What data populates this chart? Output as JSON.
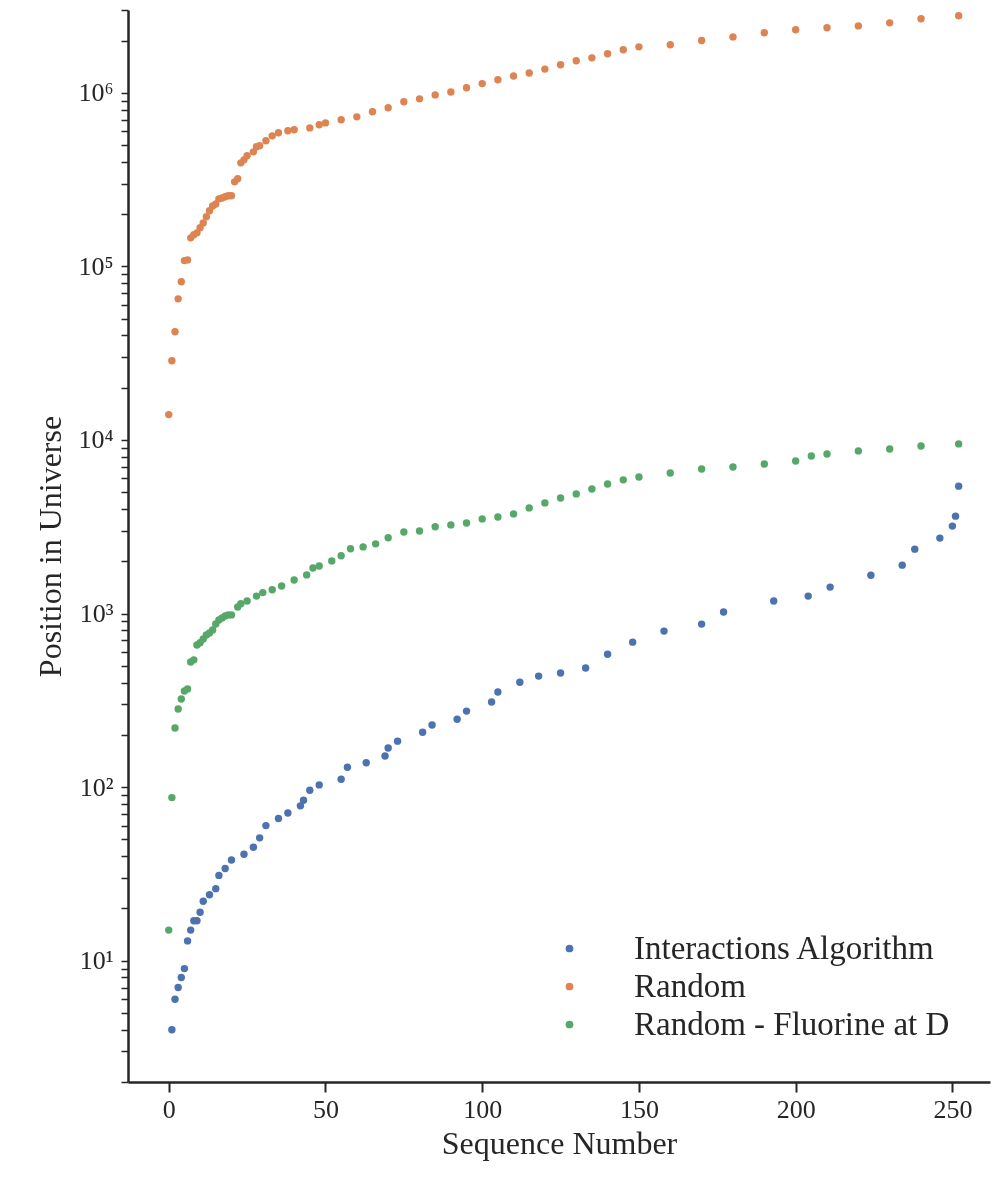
{
  "chart_data": {
    "type": "scatter",
    "xlabel": "Sequence Number",
    "ylabel": "Position in Universe",
    "log": "y",
    "grid": false,
    "legend": "bottom right",
    "marker": "circle",
    "xlim": [
      -13,
      262
    ],
    "xticks": [
      0,
      50,
      100,
      150,
      200,
      250
    ],
    "ylim": [
      2,
      3000000
    ],
    "yticks": [
      {
        "value": 2,
        "label": null
      },
      {
        "value": 3,
        "label": null
      },
      {
        "value": 4,
        "label": null
      },
      {
        "value": 5,
        "label": null
      },
      {
        "value": 6,
        "label": null
      },
      {
        "value": 7,
        "label": null
      },
      {
        "value": 8,
        "label": null
      },
      {
        "value": 9,
        "label": null
      },
      {
        "value": 10,
        "label": "10¹"
      },
      {
        "value": 20,
        "label": null
      },
      {
        "value": 30,
        "label": null
      },
      {
        "value": 40,
        "label": null
      },
      {
        "value": 50,
        "label": null
      },
      {
        "value": 60,
        "label": null
      },
      {
        "value": 70,
        "label": null
      },
      {
        "value": 80,
        "label": null
      },
      {
        "value": 90,
        "label": null
      },
      {
        "value": 100,
        "label": "10²"
      },
      {
        "value": 200,
        "label": null
      },
      {
        "value": 300,
        "label": null
      },
      {
        "value": 400,
        "label": null
      },
      {
        "value": 500,
        "label": null
      },
      {
        "value": 600,
        "label": null
      },
      {
        "value": 700,
        "label": null
      },
      {
        "value": 800,
        "label": null
      },
      {
        "value": 900,
        "label": null
      },
      {
        "value": 1000,
        "label": "10³"
      },
      {
        "value": 2000,
        "label": null
      },
      {
        "value": 3000,
        "label": null
      },
      {
        "value": 4000,
        "label": null
      },
      {
        "value": 5000,
        "label": null
      },
      {
        "value": 6000,
        "label": null
      },
      {
        "value": 7000,
        "label": null
      },
      {
        "value": 8000,
        "label": null
      },
      {
        "value": 9000,
        "label": null
      },
      {
        "value": 10000,
        "label": "10⁴"
      },
      {
        "value": 20000,
        "label": null
      },
      {
        "value": 30000,
        "label": null
      },
      {
        "value": 40000,
        "label": null
      },
      {
        "value": 50000,
        "label": null
      },
      {
        "value": 60000,
        "label": null
      },
      {
        "value": 70000,
        "label": null
      },
      {
        "value": 80000,
        "label": null
      },
      {
        "value": 90000,
        "label": null
      },
      {
        "value": 100000,
        "label": "10⁵"
      },
      {
        "value": 200000,
        "label": null
      },
      {
        "value": 300000,
        "label": null
      },
      {
        "value": 400000,
        "label": null
      },
      {
        "value": 500000,
        "label": null
      },
      {
        "value": 600000,
        "label": null
      },
      {
        "value": 700000,
        "label": null
      },
      {
        "value": 800000,
        "label": null
      },
      {
        "value": 900000,
        "label": null
      },
      {
        "value": 1000000,
        "label": "10⁶"
      },
      {
        "value": 2000000,
        "label": null
      },
      {
        "value": 3000000,
        "label": null
      }
    ],
    "series": [
      {
        "name": "Interactions Algorithm",
        "color": "#4c72b0",
        "x": [
          1,
          2,
          3,
          4,
          5,
          6,
          7,
          8,
          9,
          10,
          11,
          13,
          15,
          16,
          18,
          20,
          24,
          27,
          29,
          31,
          35,
          38,
          42,
          43,
          45,
          48,
          55,
          57,
          63,
          69,
          70,
          73,
          81,
          84,
          92,
          95,
          103,
          105,
          112,
          118,
          125,
          133,
          140,
          148,
          158,
          170,
          177,
          193,
          204,
          211,
          224,
          234,
          238,
          246,
          250,
          251,
          252
        ],
        "values": [
          4,
          6,
          7,
          8,
          9,
          13,
          15,
          17,
          17,
          19,
          22,
          24,
          26,
          31,
          34,
          38,
          41,
          45,
          51,
          60,
          66,
          71,
          78,
          84,
          96,
          103,
          111,
          130,
          138,
          151,
          168,
          184,
          207,
          228,
          246,
          274,
          309,
          353,
          402,
          436,
          454,
          485,
          583,
          684,
          792,
          869,
          1020,
          1180,
          1260,
          1420,
          1660,
          1900,
          2350,
          2720,
          3190,
          3640,
          5420
        ]
      },
      {
        "name": "Random",
        "color": "#dd8452",
        "x": [
          0,
          1,
          2,
          3,
          4,
          5,
          6,
          7,
          8,
          9,
          10,
          11,
          12,
          13,
          14,
          15,
          16,
          17,
          18,
          19,
          20,
          21,
          22,
          23,
          24,
          25,
          27,
          28,
          29,
          31,
          33,
          35,
          38,
          40,
          45,
          48,
          50,
          55,
          60,
          65,
          70,
          75,
          80,
          85,
          90,
          95,
          100,
          105,
          110,
          115,
          120,
          125,
          130,
          135,
          140,
          145,
          150,
          160,
          170,
          180,
          190,
          200,
          210,
          220,
          230,
          240,
          252
        ],
        "values": [
          14000,
          28600,
          42000,
          65000,
          81500,
          108000,
          109000,
          146000,
          152000,
          156000,
          167000,
          178000,
          193000,
          209000,
          223000,
          229000,
          245000,
          248000,
          252000,
          255000,
          255000,
          307000,
          320000,
          395000,
          411000,
          434000,
          457000,
          489000,
          495000,
          530000,
          565000,
          589000,
          604000,
          612000,
          628000,
          655000,
          671000,
          699000,
          727000,
          778000,
          820000,
          888000,
          923000,
          973000,
          1010000,
          1070000,
          1130000,
          1190000,
          1250000,
          1300000,
          1370000,
          1450000,
          1530000,
          1590000,
          1680000,
          1770000,
          1840000,
          1890000,
          2000000,
          2100000,
          2220000,
          2310000,
          2370000,
          2430000,
          2530000,
          2670000,
          2780000
        ]
      },
      {
        "name": "Random - Fluorine at D",
        "color": "#55a868",
        "x": [
          0,
          1,
          2,
          3,
          4,
          5,
          6,
          7,
          8,
          9,
          10,
          11,
          12,
          13,
          14,
          15,
          16,
          17,
          18,
          19,
          20,
          22,
          23,
          25,
          28,
          30,
          33,
          36,
          40,
          44,
          46,
          48,
          52,
          55,
          58,
          62,
          66,
          70,
          75,
          80,
          85,
          90,
          95,
          100,
          105,
          110,
          115,
          120,
          125,
          130,
          135,
          140,
          145,
          150,
          160,
          170,
          180,
          190,
          200,
          205,
          210,
          220,
          230,
          240,
          252
        ],
        "values": [
          15,
          87,
          219,
          282,
          322,
          358,
          368,
          526,
          541,
          659,
          678,
          714,
          753,
          773,
          805,
          871,
          918,
          944,
          968,
          982,
          982,
          1090,
          1140,
          1180,
          1260,
          1320,
          1370,
          1440,
          1560,
          1670,
          1830,
          1880,
          2010,
          2150,
          2360,
          2420,
          2520,
          2730,
          2950,
          2990,
          3160,
          3240,
          3320,
          3510,
          3600,
          3750,
          4060,
          4340,
          4630,
          4890,
          5220,
          5580,
          5890,
          6120,
          6450,
          6800,
          6980,
          7270,
          7570,
          8090,
          8300,
          8650,
          8870,
          9230,
          9490
        ]
      }
    ]
  }
}
